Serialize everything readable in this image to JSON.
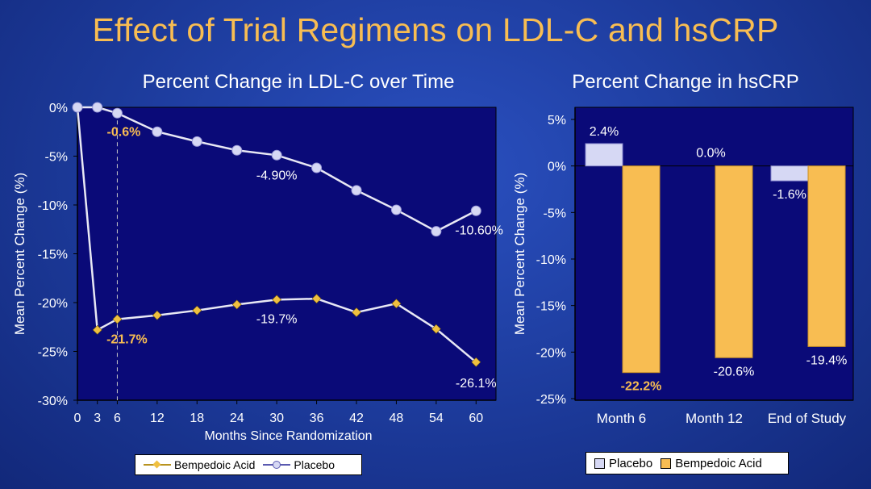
{
  "title": "Effect of Trial Regimens on LDL-C and hsCRP",
  "colors": {
    "bempedoic": "#f0c040",
    "placebo": "#d6d8f4",
    "highlight": "#f8bd52",
    "plot_bg": "#0a0a78"
  },
  "chart_data": [
    {
      "type": "line",
      "title": "Percent Change in LDL-C over Time",
      "xlabel": "Months Since Randomization",
      "ylabel": "Mean Percent Change (%)",
      "ylim": [
        -30,
        0
      ],
      "xlim": [
        0,
        63
      ],
      "x_ticks": [
        "0",
        "3",
        "6",
        "12",
        "18",
        "24",
        "30",
        "36",
        "42",
        "48",
        "54",
        "60"
      ],
      "y_ticks": [
        "0%",
        "-5%",
        "-10%",
        "-15%",
        "-20%",
        "-25%",
        "-30%"
      ],
      "reference_line_x": 6,
      "legend_position": "bottom",
      "series": [
        {
          "name": "Bempedoic Acid",
          "marker": "diamond",
          "x": [
            0,
            3,
            6,
            12,
            18,
            24,
            30,
            36,
            42,
            48,
            54,
            60
          ],
          "y": [
            0,
            -22.8,
            -21.7,
            -21.3,
            -20.8,
            -20.2,
            -19.7,
            -19.6,
            -21.0,
            -20.1,
            -22.7,
            -26.1
          ]
        },
        {
          "name": "Placebo",
          "marker": "circle",
          "x": [
            0,
            3,
            6,
            12,
            18,
            24,
            30,
            36,
            42,
            48,
            54,
            60
          ],
          "y": [
            0,
            0,
            -0.6,
            -2.5,
            -3.5,
            -4.4,
            -4.9,
            -6.2,
            -8.5,
            -10.5,
            -12.7,
            -10.6
          ]
        }
      ],
      "annotations": [
        {
          "text": "-0.6%",
          "x": 6,
          "y": -0.6,
          "highlight": true
        },
        {
          "text": "-21.7%",
          "x": 6,
          "y": -21.7,
          "highlight": true
        },
        {
          "text": "-4.90%",
          "x": 30,
          "y": -4.9,
          "highlight": false
        },
        {
          "text": "-19.7%",
          "x": 30,
          "y": -19.7,
          "highlight": false
        },
        {
          "text": "-10.60%",
          "x": 60,
          "y": -10.6,
          "highlight": false
        },
        {
          "text": "-26.1%",
          "x": 60,
          "y": -26.1,
          "highlight": false
        }
      ]
    },
    {
      "type": "bar",
      "title": "Percent Change in hsCRP",
      "ylabel": "Mean Percent Change (%)",
      "ylim": [
        -25,
        5
      ],
      "categories": [
        "Month 6",
        "Month 12",
        "End of Study"
      ],
      "y_ticks": [
        "5%",
        "0%",
        "-5%",
        "-10%",
        "-15%",
        "-20%",
        "-25%"
      ],
      "legend_position": "bottom",
      "series": [
        {
          "name": "Placebo",
          "values": [
            2.4,
            0.0,
            -1.6
          ],
          "labels": [
            "2.4%",
            "0.0%",
            "-1.6%"
          ]
        },
        {
          "name": "Bempedoic Acid",
          "values": [
            -22.2,
            -20.6,
            -19.4
          ],
          "labels": [
            "-22.2%",
            "-20.6%",
            "-19.4%"
          ]
        }
      ]
    }
  ]
}
